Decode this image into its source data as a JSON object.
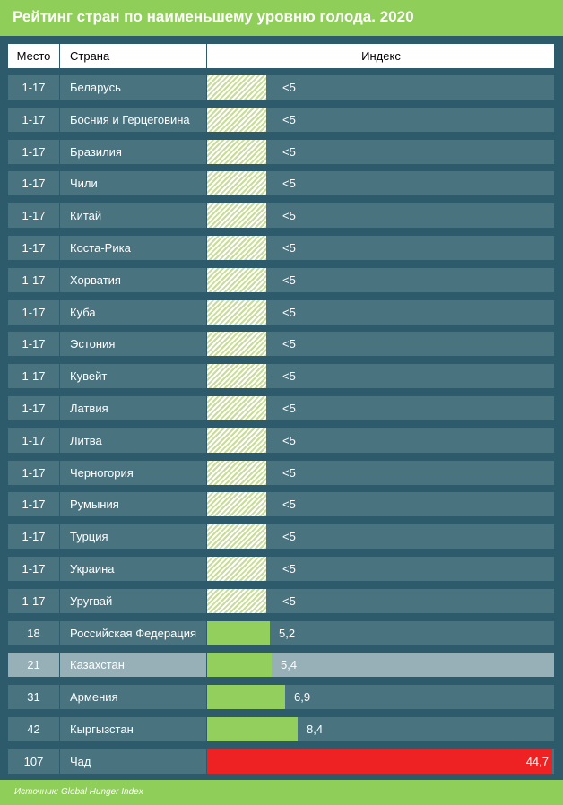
{
  "title": "Рейтинг стран по наименьшему уровню голода. 2020",
  "header": {
    "rank": "Место",
    "country": "Страна",
    "index": "Индекс"
  },
  "source": "Источник: Global Hunger Index",
  "colors": {
    "title_bar": "#8fce58",
    "background": "#2d5b6b",
    "row": "#4a7380",
    "highlight_row": "#97afb6",
    "bar": "#92cf5c",
    "bar_hatched": "#c8dd9a",
    "bar_max": "#ee2222"
  },
  "chart_data": {
    "type": "bar",
    "title": "Рейтинг стран по наименьшему уровню голода. 2020",
    "xlim": [
      0,
      44.7
    ],
    "highlighted": "Казахстан",
    "rows": [
      {
        "rank": "1-17",
        "country": "Беларусь",
        "label": "<5",
        "value": 5,
        "style": "hatched"
      },
      {
        "rank": "1-17",
        "country": "Босния и Герцеговина",
        "label": "<5",
        "value": 5,
        "style": "hatched"
      },
      {
        "rank": "1-17",
        "country": "Бразилия",
        "label": "<5",
        "value": 5,
        "style": "hatched"
      },
      {
        "rank": "1-17",
        "country": "Чили",
        "label": "<5",
        "value": 5,
        "style": "hatched"
      },
      {
        "rank": "1-17",
        "country": "Китай",
        "label": "<5",
        "value": 5,
        "style": "hatched"
      },
      {
        "rank": "1-17",
        "country": "Коста-Рика",
        "label": "<5",
        "value": 5,
        "style": "hatched"
      },
      {
        "rank": "1-17",
        "country": "Хорватия",
        "label": "<5",
        "value": 5,
        "style": "hatched"
      },
      {
        "rank": "1-17",
        "country": "Куба",
        "label": "<5",
        "value": 5,
        "style": "hatched"
      },
      {
        "rank": "1-17",
        "country": "Эстония",
        "label": "<5",
        "value": 5,
        "style": "hatched"
      },
      {
        "rank": "1-17",
        "country": "Кувейт",
        "label": "<5",
        "value": 5,
        "style": "hatched"
      },
      {
        "rank": "1-17",
        "country": "Латвия",
        "label": "<5",
        "value": 5,
        "style": "hatched"
      },
      {
        "rank": "1-17",
        "country": "Литва",
        "label": "<5",
        "value": 5,
        "style": "hatched"
      },
      {
        "rank": "1-17",
        "country": "Черногория",
        "label": "<5",
        "value": 5,
        "style": "hatched"
      },
      {
        "rank": "1-17",
        "country": "Румыния",
        "label": "<5",
        "value": 5,
        "style": "hatched"
      },
      {
        "rank": "1-17",
        "country": "Турция",
        "label": "<5",
        "value": 5,
        "style": "hatched"
      },
      {
        "rank": "1-17",
        "country": "Украина",
        "label": "<5",
        "value": 5,
        "style": "hatched"
      },
      {
        "rank": "1-17",
        "country": "Уругвай",
        "label": "<5",
        "value": 5,
        "style": "hatched"
      },
      {
        "rank": "18",
        "country": "Российская Федерация",
        "label": "5,2",
        "value": 5.2,
        "style": "solid"
      },
      {
        "rank": "21",
        "country": "Казахстан",
        "label": "5,4",
        "value": 5.4,
        "style": "solid"
      },
      {
        "rank": "31",
        "country": "Армения",
        "label": "6,9",
        "value": 6.9,
        "style": "solid"
      },
      {
        "rank": "42",
        "country": "Кыргызстан",
        "label": "8,4",
        "value": 8.4,
        "style": "solid"
      },
      {
        "rank": "107",
        "country": "Чад",
        "label": "44,7",
        "value": 44.7,
        "style": "red"
      }
    ]
  }
}
